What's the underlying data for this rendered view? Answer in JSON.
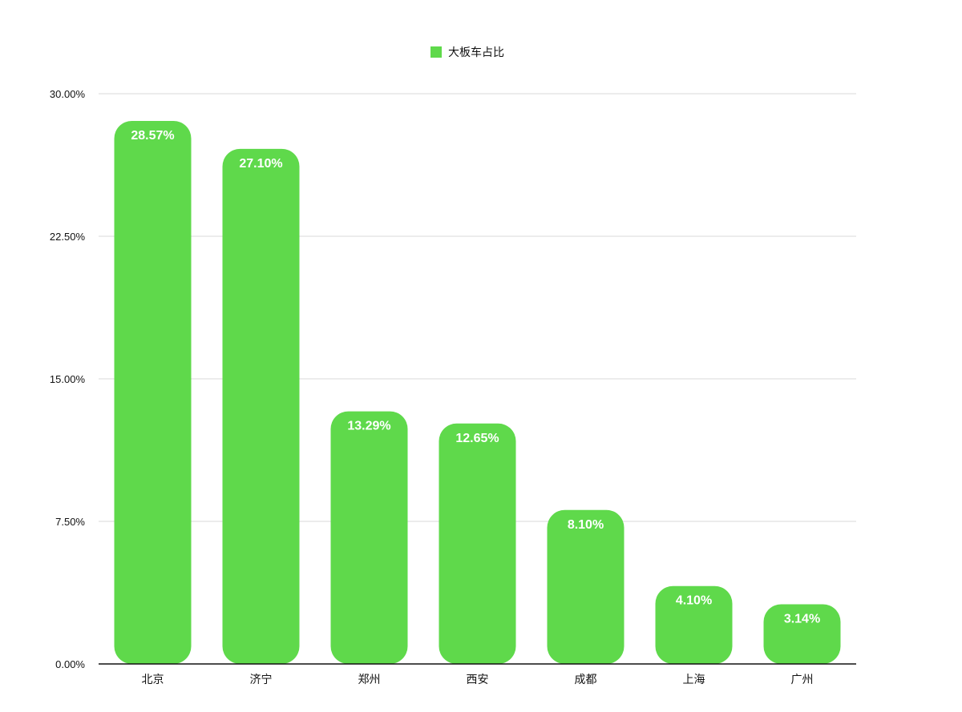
{
  "chart_data": {
    "type": "bar",
    "title": "",
    "xlabel": "",
    "ylabel": "",
    "categories": [
      "北京",
      "济宁",
      "郑州",
      "西安",
      "成都",
      "上海",
      "广州"
    ],
    "series": [
      {
        "name": "大板车占比",
        "values": [
          28.57,
          27.1,
          13.29,
          12.65,
          8.1,
          4.1,
          3.14
        ],
        "labels": [
          "28.57%",
          "27.10%",
          "13.29%",
          "12.65%",
          "8.10%",
          "4.10%",
          "3.14%"
        ],
        "color": "#5FD94B"
      }
    ],
    "ylim": [
      0,
      30
    ],
    "yticks": [
      0,
      7.5,
      15,
      22.5,
      30
    ],
    "ytick_labels": [
      "0.00%",
      "7.50%",
      "15.00%",
      "22.50%",
      "30.00%"
    ],
    "grid": true,
    "legend_position": "top-center",
    "colors": {
      "bar": "#5FD94B",
      "grid": "#d9d9d9",
      "axis": "#111111"
    }
  }
}
